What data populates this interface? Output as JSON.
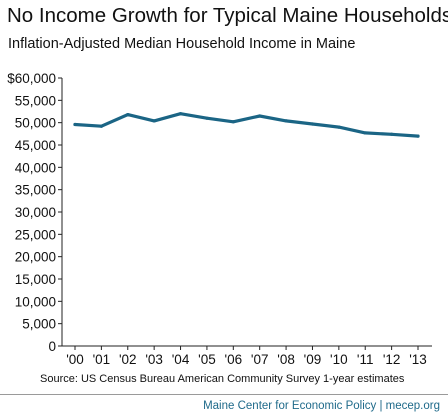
{
  "chart_data": {
    "type": "line",
    "title": "No Income Growth for Typical Maine Households",
    "subtitle": "Inflation-Adjusted Median Household Income in Maine",
    "categories": [
      "'00",
      "'01",
      "'02",
      "'03",
      "'04",
      "'05",
      "'06",
      "'07",
      "'08",
      "'09",
      "'10",
      "'11",
      "'12",
      "'13"
    ],
    "series": [
      {
        "values": [
          49600,
          49200,
          51800,
          50400,
          52000,
          51000,
          50200,
          51500,
          50400,
          49700,
          49000,
          47700,
          47400,
          47000
        ]
      }
    ],
    "ylim": [
      0,
      60000
    ],
    "yticks": [
      "$60,000",
      "55,000",
      "50,000",
      "45,000",
      "40,000",
      "35,000",
      "30,000",
      "25,000",
      "20,000",
      "15,000",
      "10,000",
      "5,000",
      "0"
    ],
    "grid": false,
    "line_color": "#1b6585",
    "source": "Source: US Census Bureau American Community Survey 1-year estimates"
  },
  "footer": "Maine Center for Economic Policy | mecep.org"
}
